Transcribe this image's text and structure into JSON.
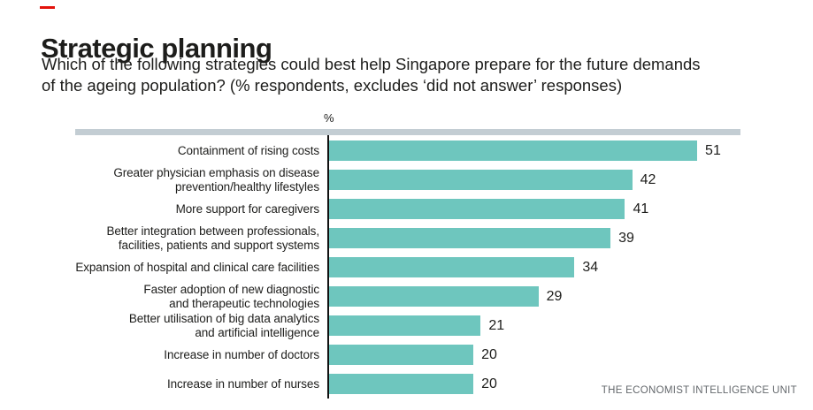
{
  "colors": {
    "bar": "#6ec6be",
    "top_rule": "#c3cdd3",
    "accent_red": "#e3120b",
    "text": "#1d1d1b",
    "source_text": "#64686c"
  },
  "header": {
    "title": "Strategic planning",
    "subtitle_line1": "Which of the following strategies could best help Singapore prepare for the future demands",
    "subtitle_line2": "of the ageing population? (% respondents, excludes ‘did not answer’ responses)"
  },
  "chart_data": {
    "type": "bar",
    "orientation": "horizontal",
    "title": "Strategic planning",
    "unit_label": "%",
    "categories": [
      "Containment of rising costs",
      "Greater physician emphasis on disease\nprevention/healthy lifestyles",
      "More support for caregivers",
      "Better integration between professionals,\nfacilities, patients and support systems",
      "Expansion of hospital and clinical care facilities",
      "Faster adoption of new diagnostic\nand therapeutic technologies",
      "Better utilisation of big data analytics\nand artificial intelligence",
      "Increase in number of doctors",
      "Increase in number of nurses"
    ],
    "values": [
      51,
      42,
      41,
      39,
      34,
      29,
      21,
      20,
      20
    ],
    "xlim": [
      0,
      57
    ],
    "grid": false,
    "value_labels": true,
    "legend": "none"
  },
  "footer": {
    "source": "THE ECONOMIST INTELLIGENCE UNIT"
  }
}
